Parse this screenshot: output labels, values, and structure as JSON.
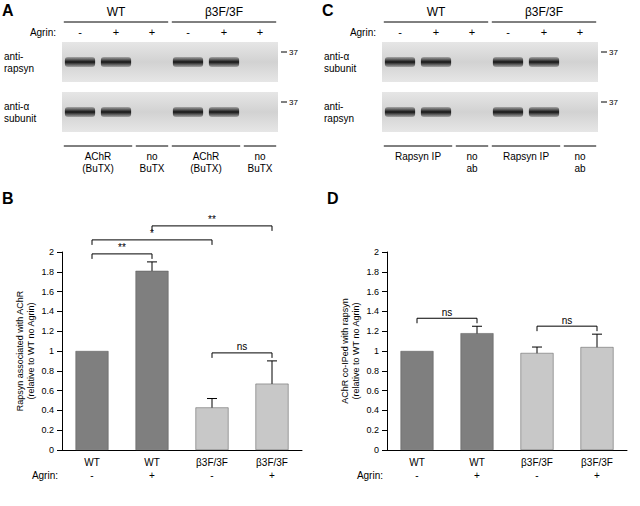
{
  "chart_data": [
    {
      "type": "bar",
      "panel": "B",
      "ylabel": [
        "Rapsyn associated with AChR",
        "(relative to WT no Agrin)"
      ],
      "categories": [
        "WT",
        "WT",
        "β3F/3F",
        "β3F/3F"
      ],
      "agrin_label": "Agrin:",
      "agrin": [
        "-",
        "+",
        "-",
        "+"
      ],
      "values": [
        1,
        1.81,
        0.43,
        0.67
      ],
      "errors": [
        0,
        0.09,
        0.09,
        0.23
      ],
      "colors": [
        "#7f7f7f",
        "#7f7f7f",
        "#c8c8c8",
        "#c8c8c8"
      ],
      "ylim": [
        0,
        2
      ],
      "yticks": [
        0,
        0.2,
        0.4,
        0.6,
        0.8,
        1,
        1.2,
        1.4,
        1.6,
        1.8,
        2
      ],
      "grid": false,
      "significance": [
        {
          "between": [
            0,
            1
          ],
          "label": "**"
        },
        {
          "between": [
            0,
            2
          ],
          "label": "*"
        },
        {
          "between": [
            1,
            3
          ],
          "label": "**"
        },
        {
          "between": [
            2,
            3
          ],
          "label": "ns"
        }
      ]
    },
    {
      "type": "bar",
      "panel": "D",
      "ylabel": [
        "AChR co-IPed with rapsyn",
        "(relative to WT no Agrin)"
      ],
      "categories": [
        "WT",
        "WT",
        "β3F/3F",
        "β3F/3F"
      ],
      "agrin_label": "Agrin:",
      "agrin": [
        "-",
        "+",
        "-",
        "+"
      ],
      "values": [
        1,
        1.18,
        0.98,
        1.04
      ],
      "errors": [
        0,
        0.07,
        0.06,
        0.13
      ],
      "colors": [
        "#7f7f7f",
        "#7f7f7f",
        "#c8c8c8",
        "#c8c8c8"
      ],
      "ylim": [
        0,
        2
      ],
      "yticks": [
        0,
        0.2,
        0.4,
        0.6,
        0.8,
        1,
        1.2,
        1.4,
        1.6,
        1.8,
        2
      ],
      "grid": false,
      "significance": [
        {
          "between": [
            0,
            1
          ],
          "label": "ns"
        },
        {
          "between": [
            2,
            3
          ],
          "label": "ns"
        }
      ]
    }
  ],
  "blots": [
    {
      "panel": "A",
      "groups": [
        "WT",
        "β3F/3F"
      ],
      "agrin_label": "Agrin:",
      "agrin": [
        "-",
        "+",
        "+",
        "-",
        "+",
        "+"
      ],
      "rows": [
        {
          "label": [
            "anti-",
            "rapsyn"
          ],
          "marker": 37
        },
        {
          "label": [
            "anti-α",
            "subunit"
          ],
          "marker": 37
        }
      ],
      "lane_labels": [
        {
          "text": [
            "AChR",
            "(BuTX)"
          ],
          "lanes": [
            0,
            1
          ]
        },
        {
          "text": [
            "no",
            "BuTX"
          ],
          "lanes": [
            2
          ]
        },
        {
          "text": [
            "AChR",
            "(BuTX)"
          ],
          "lanes": [
            3,
            4
          ]
        },
        {
          "text": [
            "no",
            "BuTX"
          ],
          "lanes": [
            5
          ]
        }
      ]
    },
    {
      "panel": "C",
      "groups": [
        "WT",
        "β3F/3F"
      ],
      "agrin_label": "Agrin:",
      "agrin": [
        "-",
        "+",
        "+",
        "-",
        "+",
        "+"
      ],
      "rows": [
        {
          "label": [
            "anti-α",
            "subunit"
          ],
          "marker": 37
        },
        {
          "label": [
            "anti-",
            "rapsyn"
          ],
          "marker": 37
        }
      ],
      "lane_labels": [
        {
          "text": [
            "Rapsyn IP"
          ],
          "lanes": [
            0,
            1
          ]
        },
        {
          "text": [
            "no",
            "ab"
          ],
          "lanes": [
            2
          ]
        },
        {
          "text": [
            "Rapsyn IP"
          ],
          "lanes": [
            3,
            4
          ]
        },
        {
          "text": [
            "no",
            "ab"
          ],
          "lanes": [
            5
          ]
        }
      ]
    }
  ]
}
